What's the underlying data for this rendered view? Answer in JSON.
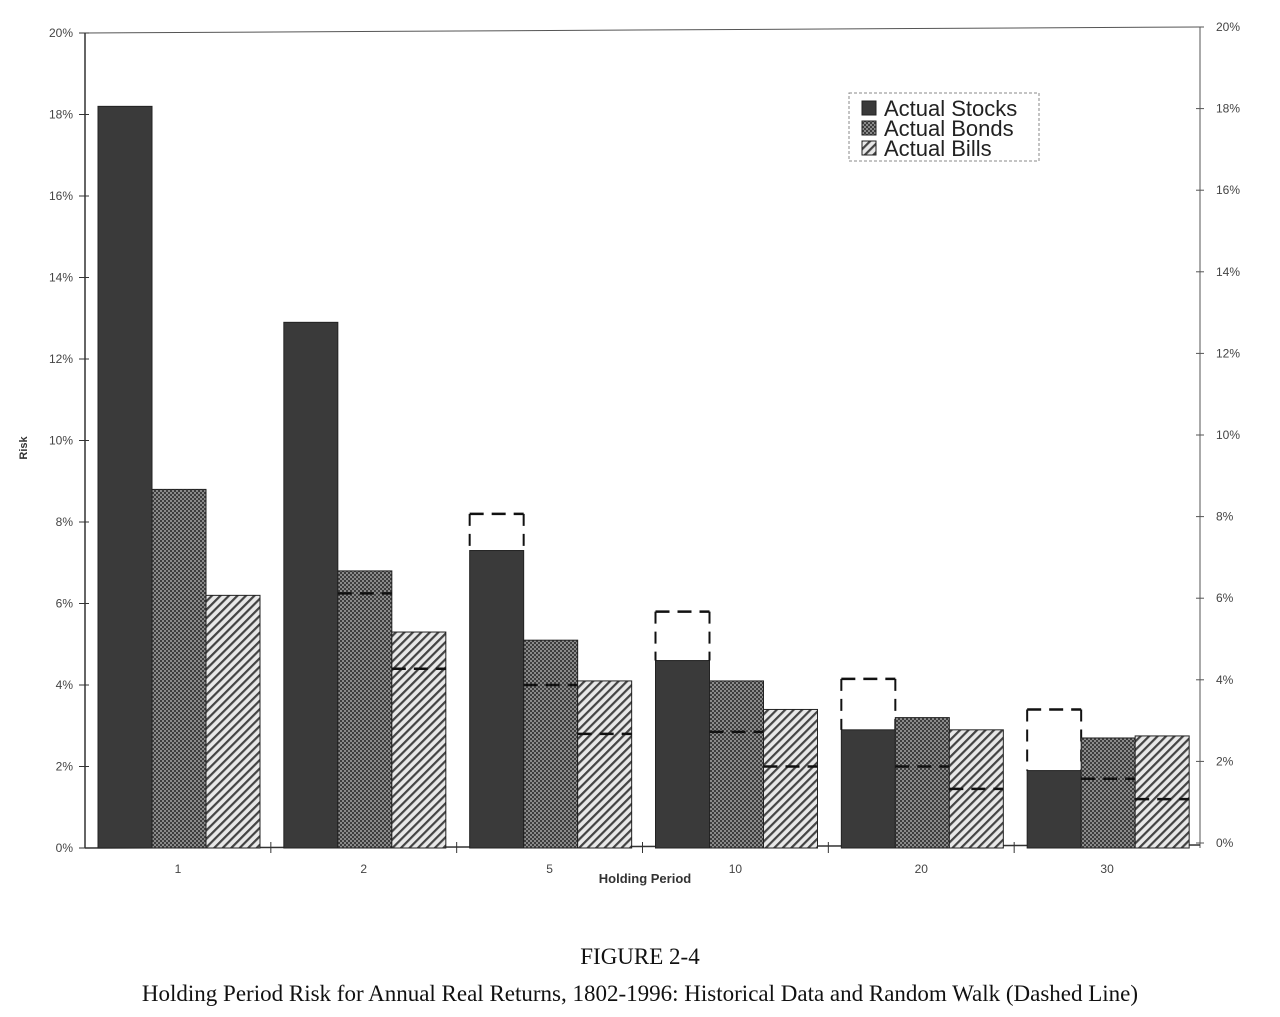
{
  "chart_data": {
    "type": "bar",
    "title": "FIGURE 2-4",
    "subtitle": "Holding Period Risk for Annual Real Returns, 1802-1996: Historical Data and Random Walk (Dashed Line)",
    "xlabel": "Holding Period",
    "ylabel": "Risk",
    "ylim": [
      0,
      20
    ],
    "yticks": [
      "0%",
      "2%",
      "4%",
      "6%",
      "8%",
      "10%",
      "12%",
      "14%",
      "16%",
      "18%",
      "20%"
    ],
    "categories": [
      "1",
      "2",
      "5",
      "10",
      "20",
      "30"
    ],
    "legend_position": "top-right",
    "series": [
      {
        "name": "Actual Stocks",
        "values": [
          18.2,
          12.9,
          7.3,
          4.6,
          2.9,
          1.9
        ],
        "random_walk": [
          null,
          null,
          8.2,
          5.8,
          4.15,
          3.4
        ],
        "color": "#3a3a3a"
      },
      {
        "name": "Actual Bonds",
        "values": [
          8.8,
          6.8,
          5.1,
          4.1,
          3.2,
          2.7
        ],
        "random_walk": [
          null,
          6.25,
          4.0,
          2.85,
          2.0,
          1.7
        ],
        "color": "#777777"
      },
      {
        "name": "Actual Bills",
        "values": [
          6.2,
          5.3,
          4.1,
          3.4,
          2.9,
          2.75
        ],
        "random_walk": [
          null,
          4.4,
          2.8,
          2.0,
          1.45,
          1.2
        ],
        "color": "#999999"
      }
    ]
  }
}
